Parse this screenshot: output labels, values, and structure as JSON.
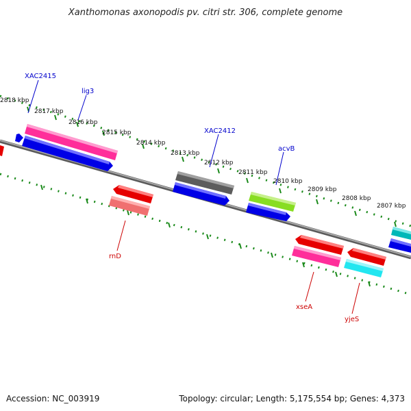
{
  "title": "Xanthomonas axonopodis pv. citri str. 306, complete genome",
  "footer": {
    "accession": "Accession: NC_003919",
    "summary": "Topology: circular; Length: 5,175,554 bp; Genes: 4,373"
  },
  "ticks": [
    "2818 kbp",
    "2817 kbp",
    "2816 kbp",
    "2815 kbp",
    "2814 kbp",
    "2813 kbp",
    "2812 kbp",
    "2811 kbp",
    "2810 kbp",
    "2809 kbp",
    "2808 kbp",
    "2807 kbp"
  ],
  "labels": {
    "forward": [
      "XAC2415",
      "lig3",
      "XAC2412",
      "acvB"
    ],
    "reverse": [
      "rnD",
      "xseA",
      "yjeS"
    ]
  },
  "colors": {
    "forward_label": "#0000cc",
    "reverse_label": "#cc0000",
    "tick_dots": "#1a8a1a",
    "backbone": "#8c8c8c"
  }
}
